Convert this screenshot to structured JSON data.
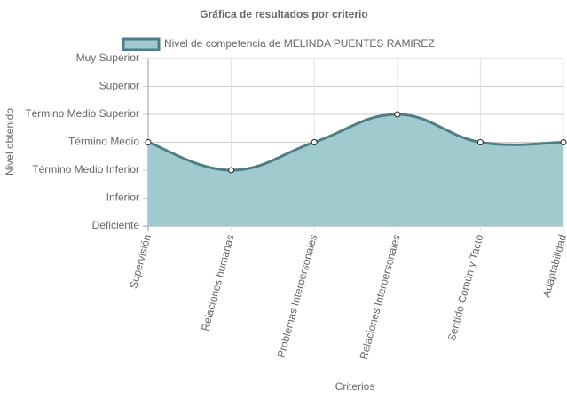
{
  "chart_data": {
    "type": "area",
    "title": "Gráfica de resultados por criterio",
    "x_label": "Criterios",
    "y_label": "Nivel obtenido",
    "categories": [
      "Supervisión",
      "Relaciones humanas",
      "Problemas Interpersonales",
      "Relaciones Interpersonales",
      "Sentido Común y Tacto",
      "Adaptabilidad"
    ],
    "series": [
      {
        "name": "Nivel de competencia de MELINDA PUENTES RAMIREZ",
        "color": "#4f7d86",
        "fill": "#9fcbce",
        "values": [
          3,
          2,
          3,
          4,
          3,
          3
        ]
      }
    ],
    "ylim": [
      0,
      6
    ],
    "yticks": [
      {
        "value": 0,
        "label": "Deficiente"
      },
      {
        "value": 1,
        "label": "Inferior"
      },
      {
        "value": 2,
        "label": "Término Medio Inferior"
      },
      {
        "value": 3,
        "label": "Término Medio"
      },
      {
        "value": 4,
        "label": "Término Medio Superior"
      },
      {
        "value": 5,
        "label": "Superior"
      },
      {
        "value": 6,
        "label": "Muy Superior"
      }
    ],
    "grid": true,
    "legend": "top"
  }
}
